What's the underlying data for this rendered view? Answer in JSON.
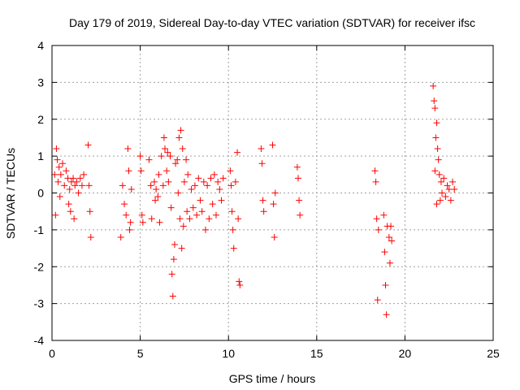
{
  "chart_data": {
    "type": "scatter",
    "title": "Day 179 of 2019, Sidereal Day-to-day VTEC variation (SDTVAR) for receiver ifsc",
    "xlabel": "GPS time / hours",
    "ylabel": "SDTVAR / TECUs",
    "xlim": [
      0,
      25
    ],
    "ylim": [
      -4,
      4
    ],
    "xticks": [
      "0",
      "5",
      "10",
      "15",
      "20",
      "25"
    ],
    "yticks": [
      "-4",
      "-3",
      "-2",
      "-1",
      "0",
      "1",
      "2",
      "3",
      "4"
    ],
    "grid": true,
    "marker": "+",
    "color": "#ff0000",
    "series": [
      {
        "name": "SDTVAR",
        "points": [
          [
            0.15,
            0.5
          ],
          [
            0.2,
            -0.6
          ],
          [
            0.25,
            1.2
          ],
          [
            0.3,
            0.9
          ],
          [
            0.35,
            0.3
          ],
          [
            0.4,
            0.7
          ],
          [
            0.45,
            -0.1
          ],
          [
            0.5,
            0.5
          ],
          [
            0.6,
            0.8
          ],
          [
            0.7,
            0.2
          ],
          [
            0.8,
            0.6
          ],
          [
            0.9,
            0.4
          ],
          [
            0.95,
            -0.3
          ],
          [
            1.0,
            0.1
          ],
          [
            1.05,
            -0.5
          ],
          [
            1.1,
            0.3
          ],
          [
            1.2,
            0.4
          ],
          [
            1.25,
            -0.7
          ],
          [
            1.3,
            0.2
          ],
          [
            1.4,
            0.3
          ],
          [
            1.5,
            0.0
          ],
          [
            1.6,
            0.4
          ],
          [
            1.7,
            0.2
          ],
          [
            1.8,
            0.5
          ],
          [
            2.05,
            1.3
          ],
          [
            2.1,
            0.2
          ],
          [
            2.15,
            -0.5
          ],
          [
            2.2,
            -1.2
          ],
          [
            3.9,
            -1.2
          ],
          [
            4.0,
            0.2
          ],
          [
            4.1,
            -0.3
          ],
          [
            4.2,
            -0.6
          ],
          [
            4.3,
            1.2
          ],
          [
            4.35,
            0.6
          ],
          [
            4.4,
            -1.0
          ],
          [
            4.45,
            -0.8
          ],
          [
            4.5,
            0.1
          ],
          [
            5.0,
            1.0
          ],
          [
            5.05,
            0.6
          ],
          [
            5.1,
            -0.6
          ],
          [
            5.15,
            -0.8
          ],
          [
            5.5,
            0.9
          ],
          [
            5.6,
            0.2
          ],
          [
            5.65,
            -0.7
          ],
          [
            5.8,
            0.3
          ],
          [
            5.85,
            -0.2
          ],
          [
            5.9,
            0.1
          ],
          [
            6.0,
            -0.1
          ],
          [
            6.05,
            0.5
          ],
          [
            6.1,
            -0.8
          ],
          [
            6.2,
            1.0
          ],
          [
            6.3,
            0.2
          ],
          [
            6.35,
            1.5
          ],
          [
            6.4,
            1.2
          ],
          [
            6.5,
            0.6
          ],
          [
            6.55,
            1.1
          ],
          [
            6.6,
            0.3
          ],
          [
            6.7,
            1.0
          ],
          [
            6.75,
            -0.4
          ],
          [
            6.8,
            -2.2
          ],
          [
            6.85,
            -2.8
          ],
          [
            6.9,
            -1.8
          ],
          [
            6.95,
            -1.4
          ],
          [
            7.0,
            0.8
          ],
          [
            7.1,
            0.9
          ],
          [
            7.15,
            0.0
          ],
          [
            7.2,
            1.5
          ],
          [
            7.25,
            -0.7
          ],
          [
            7.3,
            1.7
          ],
          [
            7.35,
            -1.5
          ],
          [
            7.4,
            1.2
          ],
          [
            7.45,
            -0.9
          ],
          [
            7.5,
            0.3
          ],
          [
            7.6,
            0.9
          ],
          [
            7.65,
            -0.5
          ],
          [
            7.7,
            0.5
          ],
          [
            7.8,
            -0.7
          ],
          [
            7.9,
            0.1
          ],
          [
            8.0,
            -0.4
          ],
          [
            8.1,
            0.2
          ],
          [
            8.2,
            -0.6
          ],
          [
            8.3,
            0.4
          ],
          [
            8.4,
            -0.2
          ],
          [
            8.5,
            -0.5
          ],
          [
            8.6,
            0.3
          ],
          [
            8.7,
            -1.0
          ],
          [
            8.8,
            0.2
          ],
          [
            8.9,
            -0.7
          ],
          [
            9.0,
            0.4
          ],
          [
            9.1,
            -0.3
          ],
          [
            9.2,
            0.5
          ],
          [
            9.3,
            -0.6
          ],
          [
            9.4,
            0.3
          ],
          [
            9.5,
            0.1
          ],
          [
            9.6,
            -0.2
          ],
          [
            9.7,
            0.4
          ],
          [
            10.1,
            0.6
          ],
          [
            10.15,
            0.2
          ],
          [
            10.2,
            -0.5
          ],
          [
            10.25,
            -1.0
          ],
          [
            10.3,
            -1.5
          ],
          [
            10.4,
            0.3
          ],
          [
            10.5,
            1.1
          ],
          [
            10.55,
            -0.7
          ],
          [
            10.6,
            -2.4
          ],
          [
            10.65,
            -2.5
          ],
          [
            11.85,
            1.2
          ],
          [
            11.9,
            0.8
          ],
          [
            11.95,
            -0.2
          ],
          [
            12.0,
            -0.5
          ],
          [
            12.5,
            1.3
          ],
          [
            12.55,
            -0.3
          ],
          [
            12.6,
            -1.2
          ],
          [
            12.65,
            0.0
          ],
          [
            13.9,
            0.7
          ],
          [
            13.95,
            0.4
          ],
          [
            14.0,
            -0.2
          ],
          [
            14.05,
            -0.6
          ],
          [
            18.3,
            0.6
          ],
          [
            18.35,
            0.3
          ],
          [
            18.4,
            -0.7
          ],
          [
            18.45,
            -2.9
          ],
          [
            18.5,
            -1.0
          ],
          [
            18.8,
            -0.6
          ],
          [
            18.85,
            -1.6
          ],
          [
            18.9,
            -2.5
          ],
          [
            18.95,
            -3.3
          ],
          [
            19.0,
            -0.9
          ],
          [
            19.1,
            -1.2
          ],
          [
            19.15,
            -1.9
          ],
          [
            19.2,
            -0.9
          ],
          [
            19.25,
            -1.3
          ],
          [
            21.6,
            2.9
          ],
          [
            21.65,
            2.5
          ],
          [
            21.7,
            2.3
          ],
          [
            21.75,
            1.5
          ],
          [
            21.8,
            1.9
          ],
          [
            21.85,
            1.2
          ],
          [
            21.9,
            0.9
          ],
          [
            21.95,
            0.5
          ],
          [
            22.0,
            -0.2
          ],
          [
            22.05,
            0.3
          ],
          [
            22.1,
            0.0
          ],
          [
            22.2,
            0.4
          ],
          [
            22.3,
            -0.1
          ],
          [
            22.4,
            0.2
          ],
          [
            22.5,
            0.1
          ],
          [
            22.6,
            -0.2
          ],
          [
            22.7,
            0.3
          ],
          [
            22.8,
            0.1
          ],
          [
            21.7,
            0.6
          ],
          [
            21.8,
            -0.3
          ]
        ]
      }
    ]
  }
}
